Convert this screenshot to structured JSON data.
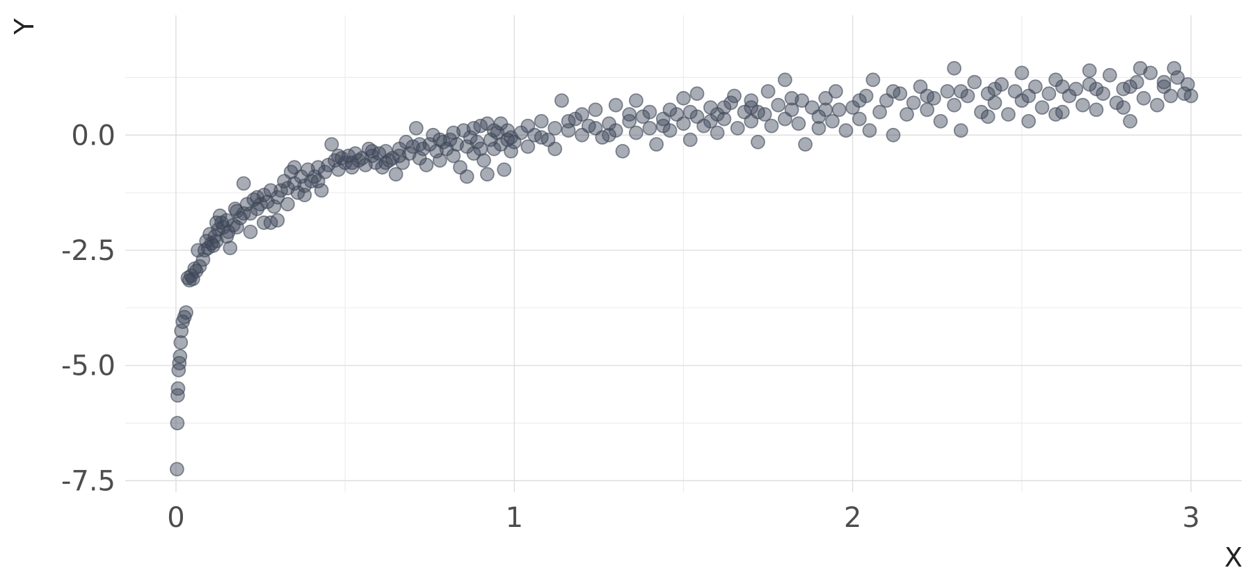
{
  "chart_data": {
    "type": "scatter",
    "title": "",
    "xlabel": "X",
    "ylabel": "Y",
    "xlim": [
      -0.15,
      3.15
    ],
    "ylim": [
      -7.75,
      2.6
    ],
    "x_ticks": [
      0,
      1,
      2,
      3
    ],
    "x_tick_labels": [
      "0",
      "1",
      "2",
      "3"
    ],
    "y_ticks": [
      0.0,
      -2.5,
      -5.0,
      -7.5
    ],
    "y_tick_labels": [
      "0.0",
      "-2.5",
      "-5.0",
      "-7.5"
    ],
    "grid": true,
    "legend": "none",
    "point_color": "#3d4659",
    "point_opacity": 0.45,
    "series": [
      {
        "points": [
          [
            0.003,
            -7.25
          ],
          [
            0.004,
            -6.25
          ],
          [
            0.005,
            -5.65
          ],
          [
            0.006,
            -5.5
          ],
          [
            0.008,
            -5.1
          ],
          [
            0.01,
            -4.95
          ],
          [
            0.012,
            -4.8
          ],
          [
            0.014,
            -4.5
          ],
          [
            0.016,
            -4.25
          ],
          [
            0.02,
            -4.05
          ],
          [
            0.025,
            -3.95
          ],
          [
            0.03,
            -3.85
          ],
          [
            0.035,
            -3.1
          ],
          [
            0.04,
            -3.15
          ],
          [
            0.045,
            -3.05
          ],
          [
            0.05,
            -3.12
          ],
          [
            0.055,
            -2.9
          ],
          [
            0.06,
            -2.95
          ],
          [
            0.065,
            -2.5
          ],
          [
            0.07,
            -2.85
          ],
          [
            0.08,
            -2.7
          ],
          [
            0.085,
            -2.5
          ],
          [
            0.09,
            -2.3
          ],
          [
            0.095,
            -2.45
          ],
          [
            0.1,
            -2.15
          ],
          [
            0.105,
            -2.35
          ],
          [
            0.11,
            -2.4
          ],
          [
            0.115,
            -2.2
          ],
          [
            0.12,
            -2.3
          ],
          [
            0.125,
            -2.05
          ],
          [
            0.13,
            -1.75
          ],
          [
            0.135,
            -1.9
          ],
          [
            0.14,
            -2.0
          ],
          [
            0.15,
            -1.85
          ],
          [
            0.155,
            -2.1
          ],
          [
            0.16,
            -2.45
          ],
          [
            0.17,
            -1.95
          ],
          [
            0.175,
            -1.6
          ],
          [
            0.18,
            -2.0
          ],
          [
            0.19,
            -1.8
          ],
          [
            0.2,
            -1.7
          ],
          [
            0.21,
            -1.5
          ],
          [
            0.22,
            -1.7
          ],
          [
            0.23,
            -1.4
          ],
          [
            0.24,
            -1.6
          ],
          [
            0.25,
            -1.5
          ],
          [
            0.26,
            -1.3
          ],
          [
            0.27,
            -1.45
          ],
          [
            0.28,
            -1.9
          ],
          [
            0.29,
            -1.55
          ],
          [
            0.3,
            -1.35
          ],
          [
            0.31,
            -1.2
          ],
          [
            0.32,
            -1.0
          ],
          [
            0.33,
            -1.15
          ],
          [
            0.34,
            -0.8
          ],
          [
            0.35,
            -1.05
          ],
          [
            0.36,
            -1.25
          ],
          [
            0.37,
            -0.9
          ],
          [
            0.38,
            -1.1
          ],
          [
            0.39,
            -0.75
          ],
          [
            0.2,
            -1.05
          ],
          [
            0.22,
            -2.1
          ],
          [
            0.26,
            -1.9
          ],
          [
            0.3,
            -1.85
          ],
          [
            0.33,
            -1.5
          ],
          [
            0.4,
            -1.0
          ],
          [
            0.41,
            -0.9
          ],
          [
            0.42,
            -0.7
          ],
          [
            0.43,
            -1.2
          ],
          [
            0.44,
            -0.8
          ],
          [
            0.45,
            -0.65
          ],
          [
            0.46,
            -0.2
          ],
          [
            0.47,
            -0.55
          ],
          [
            0.48,
            -0.75
          ],
          [
            0.49,
            -0.5
          ],
          [
            0.5,
            -0.6
          ],
          [
            0.51,
            -0.45
          ],
          [
            0.52,
            -0.7
          ],
          [
            0.53,
            -0.4
          ],
          [
            0.54,
            -0.55
          ],
          [
            0.55,
            -0.5
          ],
          [
            0.56,
            -0.65
          ],
          [
            0.57,
            -0.3
          ],
          [
            0.58,
            -0.45
          ],
          [
            0.59,
            -0.6
          ],
          [
            0.6,
            -0.4
          ],
          [
            0.61,
            -0.7
          ],
          [
            0.62,
            -0.35
          ],
          [
            0.63,
            -0.55
          ],
          [
            0.64,
            -0.5
          ],
          [
            0.65,
            -0.85
          ],
          [
            0.66,
            -0.3
          ],
          [
            0.67,
            -0.6
          ],
          [
            0.68,
            -0.15
          ],
          [
            0.69,
            -0.4
          ],
          [
            0.7,
            -0.25
          ],
          [
            0.71,
            0.15
          ],
          [
            0.72,
            -0.5
          ],
          [
            0.73,
            -0.3
          ],
          [
            0.74,
            -0.65
          ],
          [
            0.75,
            -0.2
          ],
          [
            0.76,
            0.0
          ],
          [
            0.77,
            -0.35
          ],
          [
            0.78,
            -0.55
          ],
          [
            0.79,
            -0.15
          ],
          [
            0.8,
            -0.3
          ],
          [
            0.81,
            -0.1
          ],
          [
            0.82,
            -0.45
          ],
          [
            0.83,
            -0.2
          ],
          [
            0.84,
            -0.7
          ],
          [
            0.85,
            0.1
          ],
          [
            0.86,
            -0.25
          ],
          [
            0.87,
            -0.05
          ],
          [
            0.88,
            -0.4
          ],
          [
            0.89,
            -0.15
          ],
          [
            0.9,
            0.2
          ],
          [
            0.91,
            -0.55
          ],
          [
            0.92,
            -0.85
          ],
          [
            0.93,
            -0.1
          ],
          [
            0.94,
            -0.3
          ],
          [
            0.95,
            0.05
          ],
          [
            0.96,
            -0.2
          ],
          [
            0.97,
            -0.75
          ],
          [
            0.98,
            -0.1
          ],
          [
            0.99,
            -0.35
          ],
          [
            0.86,
            -0.9
          ],
          [
            0.94,
            0.1
          ],
          [
            0.9,
            -0.3
          ],
          [
            0.96,
            0.25
          ],
          [
            0.99,
            -0.05
          ],
          [
            1.0,
            -0.15
          ],
          [
            1.02,
            0.05
          ],
          [
            1.04,
            -0.25
          ],
          [
            1.06,
            0.0
          ],
          [
            1.08,
            0.3
          ],
          [
            1.1,
            -0.1
          ],
          [
            1.12,
            0.15
          ],
          [
            1.14,
            0.75
          ],
          [
            1.16,
            0.1
          ],
          [
            1.18,
            0.35
          ],
          [
            1.2,
            0.0
          ],
          [
            1.22,
            0.2
          ],
          [
            1.24,
            0.55
          ],
          [
            1.26,
            -0.05
          ],
          [
            1.28,
            0.25
          ],
          [
            1.3,
            0.1
          ],
          [
            1.32,
            -0.35
          ],
          [
            1.34,
            0.3
          ],
          [
            1.36,
            0.05
          ],
          [
            1.38,
            0.4
          ],
          [
            1.4,
            0.15
          ],
          [
            1.42,
            -0.2
          ],
          [
            1.44,
            0.35
          ],
          [
            1.46,
            0.1
          ],
          [
            1.48,
            0.45
          ],
          [
            1.5,
            0.25
          ],
          [
            1.52,
            -0.1
          ],
          [
            1.54,
            0.4
          ],
          [
            1.56,
            0.2
          ],
          [
            1.58,
            0.6
          ],
          [
            1.6,
            0.05
          ],
          [
            1.62,
            0.35
          ],
          [
            1.64,
            0.7
          ],
          [
            1.66,
            0.15
          ],
          [
            1.68,
            0.5
          ],
          [
            1.7,
            0.3
          ],
          [
            1.72,
            -0.15
          ],
          [
            1.74,
            0.45
          ],
          [
            1.76,
            0.2
          ],
          [
            1.78,
            0.65
          ],
          [
            1.8,
            0.35
          ],
          [
            1.82,
            0.55
          ],
          [
            1.84,
            0.25
          ],
          [
            1.86,
            -0.2
          ],
          [
            1.88,
            0.6
          ],
          [
            1.9,
            0.4
          ],
          [
            1.92,
            0.8
          ],
          [
            1.94,
            0.3
          ],
          [
            1.96,
            0.55
          ],
          [
            1.98,
            0.1
          ],
          [
            1.65,
            0.85
          ],
          [
            1.7,
            0.6
          ],
          [
            1.75,
            0.95
          ],
          [
            1.85,
            0.75
          ],
          [
            1.9,
            0.15
          ],
          [
            1.54,
            0.9
          ],
          [
            1.58,
            0.3
          ],
          [
            1.46,
            0.55
          ],
          [
            1.36,
            0.75
          ],
          [
            1.28,
            0.0
          ],
          [
            2.0,
            0.6
          ],
          [
            2.02,
            0.35
          ],
          [
            2.04,
            0.85
          ],
          [
            2.06,
            1.2
          ],
          [
            2.08,
            0.5
          ],
          [
            2.1,
            0.75
          ],
          [
            2.12,
            0.0
          ],
          [
            2.14,
            0.9
          ],
          [
            2.16,
            0.45
          ],
          [
            2.18,
            0.7
          ],
          [
            2.2,
            1.05
          ],
          [
            2.22,
            0.55
          ],
          [
            2.24,
            0.8
          ],
          [
            2.26,
            0.3
          ],
          [
            2.28,
            0.95
          ],
          [
            2.3,
            0.65
          ],
          [
            2.32,
            0.1
          ],
          [
            2.34,
            0.85
          ],
          [
            2.36,
            1.15
          ],
          [
            2.38,
            0.5
          ],
          [
            2.4,
            0.9
          ],
          [
            2.42,
            0.7
          ],
          [
            2.44,
            1.1
          ],
          [
            2.46,
            0.45
          ],
          [
            2.48,
            0.95
          ],
          [
            2.5,
            0.75
          ],
          [
            2.52,
            0.3
          ],
          [
            2.54,
            1.05
          ],
          [
            2.56,
            0.6
          ],
          [
            2.58,
            0.9
          ],
          [
            2.6,
            1.2
          ],
          [
            2.62,
            0.5
          ],
          [
            2.64,
            0.85
          ],
          [
            2.66,
            1.0
          ],
          [
            2.68,
            0.65
          ],
          [
            2.7,
            1.1
          ],
          [
            2.72,
            0.55
          ],
          [
            2.74,
            0.9
          ],
          [
            2.76,
            1.3
          ],
          [
            2.78,
            0.7
          ],
          [
            2.8,
            1.0
          ],
          [
            2.82,
            0.3
          ],
          [
            2.84,
            1.15
          ],
          [
            2.86,
            0.8
          ],
          [
            2.88,
            1.35
          ],
          [
            2.9,
            0.65
          ],
          [
            2.92,
            1.05
          ],
          [
            2.94,
            0.85
          ],
          [
            2.96,
            1.25
          ],
          [
            2.98,
            0.9
          ],
          [
            2.3,
            1.45
          ],
          [
            2.5,
            1.35
          ],
          [
            2.7,
            1.4
          ],
          [
            2.85,
            1.45
          ],
          [
            2.95,
            1.45
          ],
          [
            2.4,
            0.4
          ],
          [
            2.6,
            0.45
          ],
          [
            2.8,
            0.6
          ],
          [
            2.99,
            1.1
          ],
          [
            3.0,
            0.85
          ],
          [
            1.12,
            -0.3
          ],
          [
            1.2,
            0.45
          ],
          [
            1.3,
            0.65
          ],
          [
            1.4,
            0.5
          ],
          [
            1.5,
            0.8
          ],
          [
            1.6,
            0.45
          ],
          [
            1.7,
            0.75
          ],
          [
            1.8,
            1.2
          ],
          [
            1.95,
            0.95
          ],
          [
            2.05,
            0.1
          ],
          [
            0.12,
            -1.9
          ],
          [
            0.15,
            -2.2
          ],
          [
            0.18,
            -1.65
          ],
          [
            0.24,
            -1.35
          ],
          [
            0.28,
            -1.2
          ],
          [
            0.35,
            -0.7
          ],
          [
            0.38,
            -1.3
          ],
          [
            0.42,
            -1.0
          ],
          [
            0.48,
            -0.45
          ],
          [
            0.52,
            -0.6
          ],
          [
            0.58,
            -0.35
          ],
          [
            0.62,
            -0.6
          ],
          [
            0.66,
            -0.45
          ],
          [
            0.72,
            -0.2
          ],
          [
            0.78,
            -0.1
          ],
          [
            0.82,
            0.05
          ],
          [
            0.88,
            0.15
          ],
          [
            0.92,
            0.25
          ],
          [
            0.98,
            0.1
          ],
          [
            1.04,
            0.2
          ],
          [
            1.08,
            -0.05
          ],
          [
            1.16,
            0.3
          ],
          [
            1.24,
            0.15
          ],
          [
            1.34,
            0.45
          ],
          [
            1.44,
            0.2
          ],
          [
            1.52,
            0.5
          ],
          [
            1.62,
            0.6
          ],
          [
            1.72,
            0.5
          ],
          [
            1.82,
            0.8
          ],
          [
            1.92,
            0.55
          ],
          [
            2.02,
            0.75
          ],
          [
            2.12,
            0.95
          ],
          [
            2.22,
            0.85
          ],
          [
            2.32,
            0.95
          ],
          [
            2.42,
            1.0
          ],
          [
            2.52,
            0.85
          ],
          [
            2.62,
            1.05
          ],
          [
            2.72,
            1.0
          ],
          [
            2.82,
            1.05
          ],
          [
            2.92,
            1.15
          ]
        ]
      }
    ]
  }
}
